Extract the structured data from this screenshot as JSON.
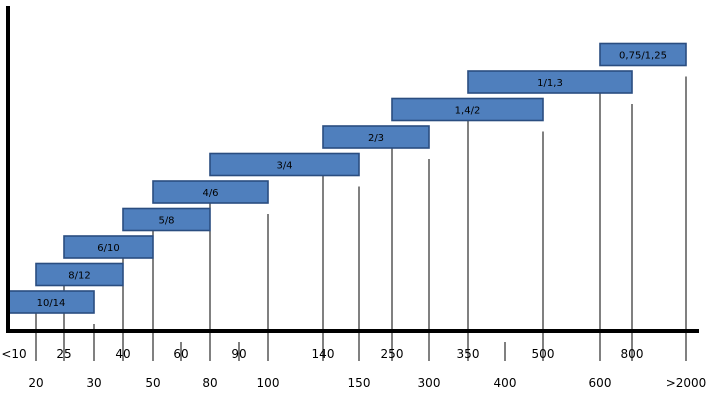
{
  "chart_data": {
    "type": "bar",
    "title": "",
    "xlabel": "",
    "ylabel": "",
    "grid": false,
    "x_ticks": [
      "<10",
      "20",
      "25",
      "30",
      "40",
      "50",
      "60",
      "80",
      "90",
      "100",
      "140",
      "150",
      "250",
      "300",
      "350",
      "400",
      "500",
      "600",
      "800",
      ">2000"
    ],
    "bars": [
      {
        "label": "10/14",
        "start": "<10",
        "end": "30"
      },
      {
        "label": "8/12",
        "start": "20",
        "end": "40"
      },
      {
        "label": "6/10",
        "start": "25",
        "end": "50"
      },
      {
        "label": "5/8",
        "start": "40",
        "end": "80"
      },
      {
        "label": "4/6",
        "start": "50",
        "end": "100"
      },
      {
        "label": "3/4",
        "start": "80",
        "end": "150"
      },
      {
        "label": "2/3",
        "start": "140",
        "end": "300"
      },
      {
        "label": "1,4/2",
        "start": "250",
        "end": "500"
      },
      {
        "label": "1/1,3",
        "start": "350",
        "end": "800"
      },
      {
        "label": "0,75/1,25",
        "start": "600",
        "end": ">2000"
      }
    ]
  }
}
